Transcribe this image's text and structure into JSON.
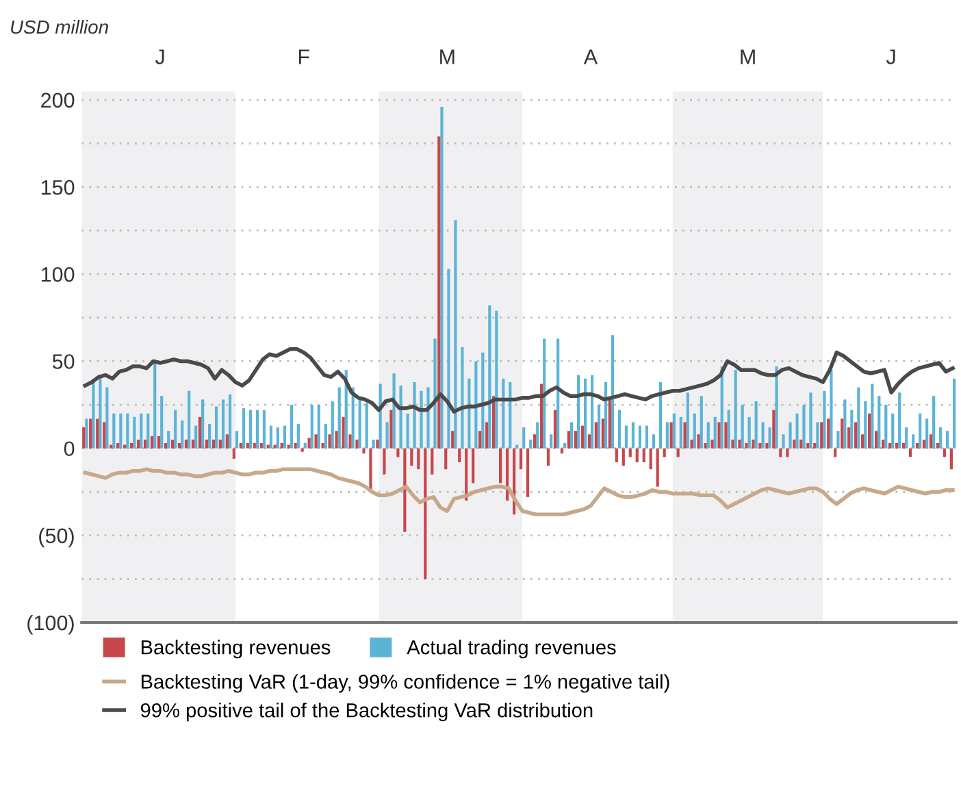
{
  "chart_data": {
    "type": "bar",
    "ylabel": "USD million",
    "categories": [
      null,
      null,
      null,
      null,
      null,
      null,
      null,
      null,
      null,
      null,
      null,
      "J",
      null,
      null,
      null,
      null,
      null,
      null,
      null,
      null,
      null,
      null,
      null,
      null,
      null,
      null,
      null,
      null,
      null,
      null,
      null,
      null,
      "F",
      null,
      null,
      null,
      null,
      null,
      null,
      null,
      null,
      null,
      null,
      null,
      null,
      null,
      null,
      null,
      null,
      null,
      null,
      null,
      null,
      "M",
      null,
      null,
      null,
      null,
      null,
      null,
      null,
      null,
      null,
      null,
      null,
      null,
      null,
      null,
      null,
      null,
      null,
      null,
      null,
      null,
      "A",
      null,
      null,
      null,
      null,
      null,
      null,
      null,
      null,
      null,
      null,
      null,
      null,
      null,
      null,
      null,
      null,
      null,
      null,
      null,
      null,
      null,
      null,
      "M",
      null,
      null,
      null,
      null,
      null,
      null,
      null,
      null,
      null,
      null,
      null,
      null,
      null,
      null,
      null,
      null,
      null,
      null,
      null,
      null,
      "J",
      null,
      null,
      null,
      null,
      null,
      null,
      null,
      null,
      null
    ],
    "series": [
      {
        "name": "Actual trading revenues",
        "type": "bar",
        "color": "#5bb4d6",
        "values": [
          17,
          40,
          42,
          35,
          20,
          20,
          20,
          18,
          20,
          20,
          50,
          30,
          10,
          22,
          16,
          33,
          13,
          28,
          14,
          24,
          28,
          31,
          10,
          23,
          22,
          22,
          22,
          13,
          12,
          13,
          25,
          14,
          3,
          25,
          25,
          14,
          27,
          35,
          45,
          35,
          28,
          26,
          5,
          37,
          15,
          43,
          36,
          20,
          38,
          33,
          35,
          63,
          196,
          103,
          131,
          58,
          40,
          50,
          55,
          82,
          79,
          40,
          38,
          2,
          12,
          5,
          15,
          63,
          8,
          63,
          3,
          15,
          42,
          40,
          42,
          25,
          38,
          65,
          22,
          13,
          15,
          13,
          13,
          8,
          38,
          15,
          20,
          18,
          32,
          20,
          30,
          15,
          18,
          47,
          22,
          45,
          25,
          18,
          27,
          15,
          12,
          47,
          8,
          15,
          20,
          25,
          32,
          15,
          33,
          45,
          10,
          28,
          22,
          35,
          27,
          37,
          30,
          25,
          20,
          32,
          12,
          8,
          20,
          17,
          30,
          12,
          10,
          40
        ]
      },
      {
        "name": "Backtesting revenues",
        "type": "bar",
        "color": "#c9464a",
        "values": [
          12,
          17,
          17,
          15,
          2,
          3,
          2,
          3,
          5,
          5,
          7,
          7,
          3,
          5,
          3,
          5,
          5,
          18,
          5,
          5,
          5,
          8,
          -6,
          3,
          3,
          3,
          3,
          2,
          2,
          3,
          2,
          3,
          -2,
          6,
          8,
          3,
          8,
          10,
          18,
          8,
          5,
          -3,
          -25,
          5,
          -15,
          22,
          -5,
          -48,
          -10,
          -12,
          -75,
          -15,
          179,
          -12,
          10,
          -8,
          -30,
          -20,
          10,
          15,
          30,
          -20,
          -30,
          -38,
          -12,
          -28,
          8,
          37,
          -10,
          22,
          -3,
          10,
          10,
          13,
          8,
          15,
          17,
          28,
          -8,
          -10,
          -5,
          -8,
          -8,
          -12,
          -22,
          -5,
          15,
          -5,
          15,
          5,
          8,
          3,
          5,
          15,
          15,
          5,
          5,
          3,
          5,
          3,
          3,
          22,
          -5,
          -5,
          5,
          5,
          3,
          3,
          15,
          17,
          -5,
          17,
          12,
          15,
          8,
          20,
          10,
          5,
          3,
          3,
          3,
          -5,
          3,
          5,
          8,
          3,
          -5,
          -12
        ]
      },
      {
        "name": "Backtesting VaR (1-day, 99% confidence = 1% negative tail)",
        "type": "line",
        "color": "#c8a88a",
        "values": [
          -14,
          -15,
          -16,
          -17,
          -15,
          -14,
          -14,
          -13,
          -13,
          -12,
          -13,
          -13,
          -14,
          -14,
          -15,
          -15,
          -16,
          -16,
          -15,
          -14,
          -14,
          -13,
          -14,
          -15,
          -15,
          -14,
          -14,
          -13,
          -13,
          -12,
          -12,
          -12,
          -12,
          -12,
          -13,
          -14,
          -15,
          -17,
          -18,
          -19,
          -20,
          -22,
          -25,
          -27,
          -27,
          -26,
          -24,
          -22,
          -27,
          -31,
          -29,
          -28,
          -34,
          -36,
          -29,
          -28,
          -27,
          -25,
          -24,
          -23,
          -22,
          -22,
          -23,
          -30,
          -36,
          -37,
          -38,
          -38,
          -38,
          -38,
          -38,
          -37,
          -36,
          -35,
          -33,
          -28,
          -23,
          -25,
          -27,
          -28,
          -28,
          -27,
          -26,
          -24,
          -25,
          -25,
          -26,
          -26,
          -26,
          -26,
          -27,
          -27,
          -27,
          -30,
          -34,
          -32,
          -30,
          -28,
          -26,
          -24,
          -23,
          -24,
          -25,
          -26,
          -25,
          -24,
          -23,
          -23,
          -25,
          -29,
          -32,
          -29,
          -26,
          -24,
          -23,
          -24,
          -25,
          -26,
          -24,
          -22,
          -23,
          -24,
          -25,
          -26,
          -25,
          -25,
          -24,
          -24
        ]
      },
      {
        "name": "99% positive tail of the Backtesting VaR distribution",
        "type": "line",
        "color": "#4a4a4a",
        "values": [
          36,
          38,
          41,
          42,
          40,
          44,
          45,
          47,
          47,
          46,
          50,
          49,
          50,
          51,
          50,
          50,
          49,
          48,
          46,
          40,
          45,
          42,
          38,
          36,
          39,
          45,
          51,
          54,
          53,
          55,
          57,
          57,
          55,
          52,
          47,
          42,
          41,
          44,
          40,
          32,
          29,
          28,
          26,
          22,
          27,
          28,
          23,
          23,
          24,
          22,
          22,
          26,
          31,
          27,
          21,
          23,
          24,
          24,
          25,
          26,
          28,
          28,
          28,
          28,
          29,
          29,
          30,
          30,
          33,
          35,
          32,
          30,
          30,
          31,
          31,
          30,
          28,
          29,
          30,
          31,
          30,
          29,
          28,
          30,
          31,
          32,
          33,
          33,
          34,
          35,
          36,
          37,
          39,
          42,
          50,
          48,
          45,
          45,
          45,
          43,
          42,
          42,
          45,
          46,
          44,
          42,
          41,
          40,
          38,
          45,
          55,
          53,
          50,
          47,
          44,
          43,
          44,
          45,
          32,
          37,
          41,
          44,
          46,
          47,
          48,
          49,
          44,
          46
        ]
      }
    ],
    "ylim": [
      -100,
      205
    ],
    "yticks": [
      {
        "value": -100,
        "label": "(100)"
      },
      {
        "value": -75,
        "label": null
      },
      {
        "value": -50,
        "label": "(50)"
      },
      {
        "value": -25,
        "label": null
      },
      0,
      {
        "value": 25,
        "label": null
      },
      50,
      {
        "value": 75,
        "label": null
      },
      100,
      {
        "value": 125,
        "label": null
      },
      150,
      {
        "value": 175,
        "label": null
      },
      200
    ],
    "grid": "y",
    "legend": "bottom"
  }
}
